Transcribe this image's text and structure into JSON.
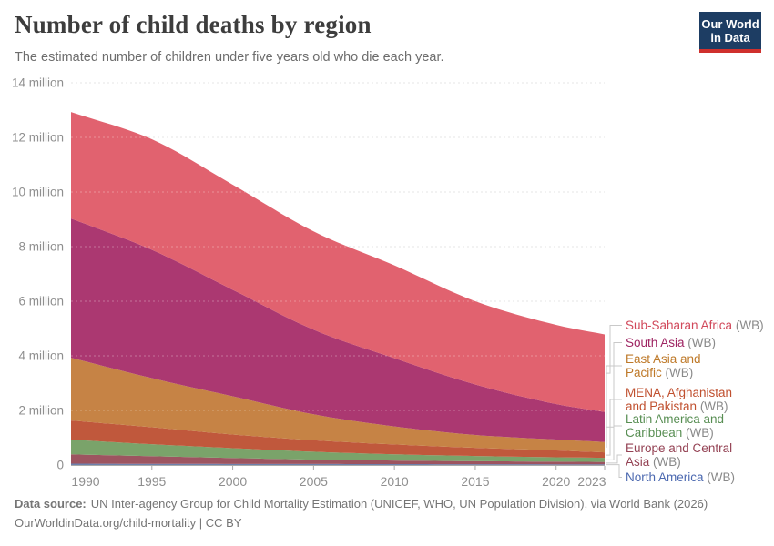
{
  "header": {
    "title": "Number of child deaths by region",
    "subtitle": "The estimated number of children under five years old who die each year."
  },
  "logo": {
    "line1": "Our World",
    "line2": "in Data",
    "bg": "#1d3d63",
    "underline": "#cf302d"
  },
  "chart_data": {
    "type": "area",
    "stacked": true,
    "title": "Number of child deaths by region",
    "x": [
      1990,
      1995,
      2000,
      2005,
      2010,
      2015,
      2020,
      2023
    ],
    "x_range": [
      1990,
      2023
    ],
    "x_ticks": [
      1990,
      1995,
      2000,
      2005,
      2010,
      2015,
      2020,
      2023
    ],
    "ylim_millions": [
      0,
      14
    ],
    "y_ticks": [
      {
        "value": 0,
        "label": "0"
      },
      {
        "value": 2,
        "label": "2 million"
      },
      {
        "value": 4,
        "label": "4 million"
      },
      {
        "value": 6,
        "label": "6 million"
      },
      {
        "value": 8,
        "label": "8 million"
      },
      {
        "value": 10,
        "label": "10 million"
      },
      {
        "value": 12,
        "label": "12 million"
      },
      {
        "value": 14,
        "label": "14 million"
      }
    ],
    "values_unit": "million child deaths per year",
    "stack_order": "first series is the top band",
    "interpolation": "values are 5-year anchors read from the chart; drawn smoothed 1990-2023",
    "legend_position": "right",
    "grid": "dashed horizontal",
    "series": [
      {
        "name": "Sub-Saharan Africa",
        "suffix": "(WB)",
        "lines": [
          "Sub-Saharan Africa"
        ],
        "color": "#e1626f",
        "text_color": "#d1495b",
        "values": [
          3.9,
          4.05,
          3.85,
          3.6,
          3.4,
          3.05,
          2.9,
          2.84
        ]
      },
      {
        "name": "South Asia",
        "suffix": "(WB)",
        "lines": [
          "South Asia"
        ],
        "color": "#ab3871",
        "text_color": "#9e2462",
        "values": [
          5.1,
          4.7,
          3.9,
          3.1,
          2.5,
          1.85,
          1.3,
          1.1
        ]
      },
      {
        "name": "East Asia and Pacific",
        "suffix": "(WB)",
        "lines": [
          "East Asia and",
          "Pacific"
        ],
        "color": "#c68345",
        "text_color": "#be7929",
        "values": [
          2.3,
          1.8,
          1.4,
          0.95,
          0.66,
          0.47,
          0.4,
          0.38
        ]
      },
      {
        "name": "MENA, Afghanistan and Pakistan",
        "suffix": "(WB)",
        "lines": [
          "MENA, Afghanistan",
          "and Pakistan"
        ],
        "color": "#c0583c",
        "text_color": "#c0502f",
        "values": [
          0.7,
          0.62,
          0.5,
          0.42,
          0.36,
          0.3,
          0.25,
          0.2
        ]
      },
      {
        "name": "Latin America and Caribbean",
        "suffix": "(WB)",
        "lines": [
          "Latin America and",
          "Caribbean"
        ],
        "color": "#7aa36a",
        "text_color": "#588e53",
        "values": [
          0.54,
          0.44,
          0.36,
          0.29,
          0.23,
          0.19,
          0.16,
          0.15
        ]
      },
      {
        "name": "Europe and Central Asia",
        "suffix": "(WB)",
        "lines": [
          "Europe and Central",
          "Asia"
        ],
        "color": "#9d5460",
        "text_color": "#944254",
        "values": [
          0.34,
          0.28,
          0.22,
          0.16,
          0.13,
          0.11,
          0.095,
          0.085
        ]
      },
      {
        "name": "North America",
        "suffix": "(WB)",
        "lines": [
          "North America"
        ],
        "color": "#6d80ad",
        "text_color": "#4c69b0",
        "values": [
          0.05,
          0.042,
          0.038,
          0.036,
          0.033,
          0.03,
          0.028,
          0.027
        ]
      }
    ]
  },
  "footer": {
    "source_label": "Data source:",
    "source_text": "UN Inter-agency Group for Child Mortality Estimation (UNICEF, WHO, UN Population Division), via World Bank (2026)",
    "url": "OurWorldinData.org/child-mortality",
    "divider": " | ",
    "license": "CC BY"
  }
}
